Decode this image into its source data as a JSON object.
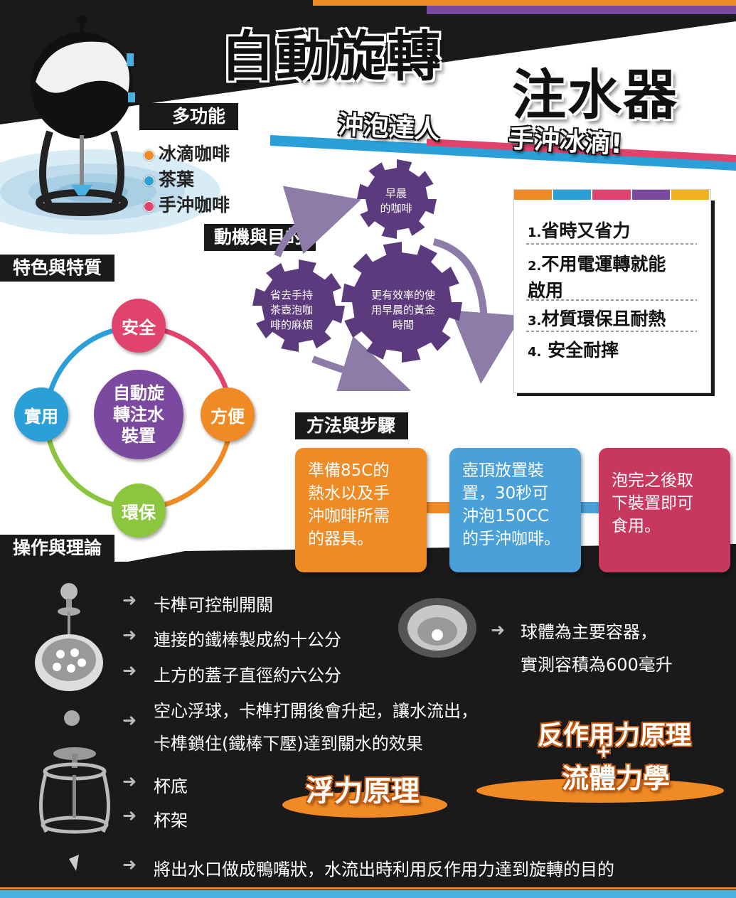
{
  "header": {
    "title_left": "自動旋轉",
    "title_right": "注水器",
    "subtitle_left": "沖泡達人",
    "subtitle_right": "手沖冰滴!"
  },
  "multi": {
    "label": "多功能",
    "items": [
      {
        "text": "冰滴咖啡",
        "color": "#f08a24"
      },
      {
        "text": "茶葉",
        "color": "#2a9fd8"
      },
      {
        "text": "手沖咖啡",
        "color": "#e0436c"
      }
    ]
  },
  "motive": {
    "label": "動機與目的",
    "gears": {
      "top": "早晨\n的咖啡",
      "left": "省去手持\n茶壺泡咖\n啡的麻煩",
      "big": "更有效率的使\n用早晨的黃金\n時間"
    },
    "gear_color": "#5b3a7e"
  },
  "benefits": {
    "items": [
      {
        "num": "1.",
        "text": "省時又省力"
      },
      {
        "num": "2.",
        "text": "不用電運轉就能\n啟用"
      },
      {
        "num": "3.",
        "text": "材質環保且耐熱"
      },
      {
        "num": "4.",
        "text": " 安全耐摔"
      }
    ],
    "stripe_colors": [
      "#f08a24",
      "#2a9fd8",
      "#e0436c",
      "#7b4aa0",
      "#f0b020"
    ]
  },
  "features": {
    "label": "特色與特質",
    "center": "自動旋\n轉注水\n裝置",
    "nodes": {
      "top": {
        "text": "安全",
        "color": "#e0436c"
      },
      "right": {
        "text": "方便",
        "color": "#f08a24"
      },
      "bottom": {
        "text": "環保",
        "color": "#8cc63f"
      },
      "left": {
        "text": "實用",
        "color": "#2a9fd8"
      }
    },
    "center_color": "#7b4aa0"
  },
  "method": {
    "label": "方法與步驟",
    "steps": [
      {
        "text": "準備85C的\n熱水以及手\n沖咖啡所需\n的器具。",
        "color": "#f08a24"
      },
      {
        "text": "壺頂放置裝\n置，30秒可\n沖泡150CC\n的手沖咖啡。",
        "color": "#4aa0d8"
      },
      {
        "text": "泡完之後取\n下裝置即可\n食用。",
        "color": "#c8385e"
      }
    ]
  },
  "operation": {
    "label": "操作與理論",
    "items": [
      "卡榫可控制開關",
      "連接的鐵棒製成約十公分",
      "上方的蓋子直徑約六公分",
      "空心浮球，卡榫打開後會升起，讓水流出，\n卡榫鎖住(鐵棒下壓)達到關水的效果",
      "杯底",
      "杯架",
      "將出水口做成鴨嘴狀，水流出時利用反作用力達到旋轉的目的"
    ],
    "sphere_note": "球體為主要容器，\n實測容積為600毫升",
    "principle_1": "浮力原理",
    "principle_2_top": "反作用力原理",
    "principle_2_plus": "+",
    "principle_2_bottom": "流體力學"
  },
  "colors": {
    "dark": "#1a1a1a",
    "orange": "#f08a24",
    "blue": "#2a9fd8",
    "pink": "#e0436c",
    "purple": "#7b4aa0"
  }
}
